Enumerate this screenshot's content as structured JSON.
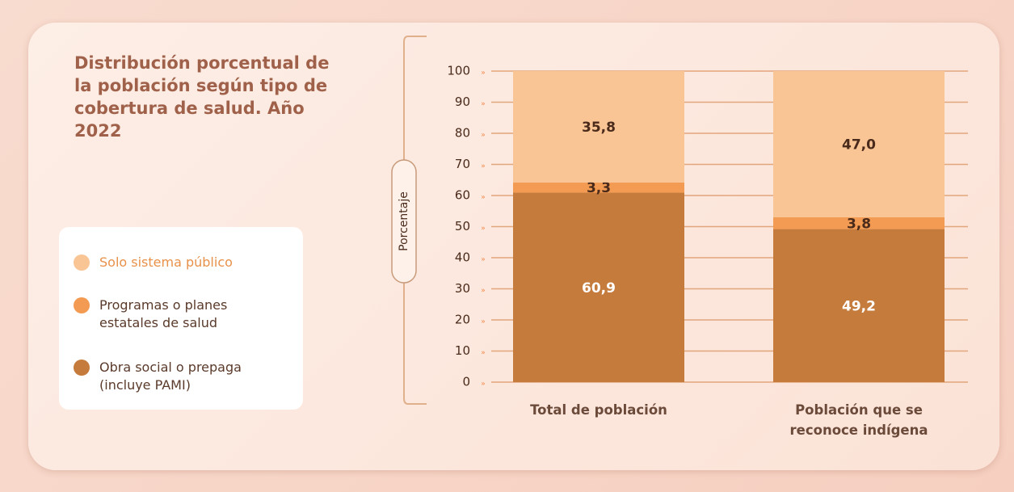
{
  "chart_data": {
    "type": "stacked_bar",
    "title": "Distribución porcentual de la población según tipo de cobertura de salud. Año 2022",
    "y_label": "Porcentaje",
    "categories": [
      "Total de población",
      "Población que se reconoce indígena"
    ],
    "series": [
      {
        "name": "Obra social o prepaga (incluye PAMI)",
        "color": "#c47b3b",
        "label_color": "#ffffff",
        "values": [
          60.9,
          49.2
        ],
        "value_labels": [
          "60,9",
          "49,2"
        ]
      },
      {
        "name": "Programas o planes estatales de salud",
        "color": "#f39b52",
        "label_color": "#4a2a1a",
        "values": [
          3.3,
          3.8
        ],
        "value_labels": [
          "3,3",
          "3,8"
        ]
      },
      {
        "name": "Solo sistema público",
        "color": "#f9c595",
        "label_color": "#4a2a1a",
        "values": [
          35.8,
          47.0
        ],
        "value_labels": [
          "35,8",
          "47,0"
        ]
      }
    ],
    "ylim": [
      0,
      100
    ],
    "yticks": [
      0,
      10,
      20,
      30,
      40,
      50,
      60,
      70,
      80,
      90,
      100
    ],
    "grid": true
  }
}
